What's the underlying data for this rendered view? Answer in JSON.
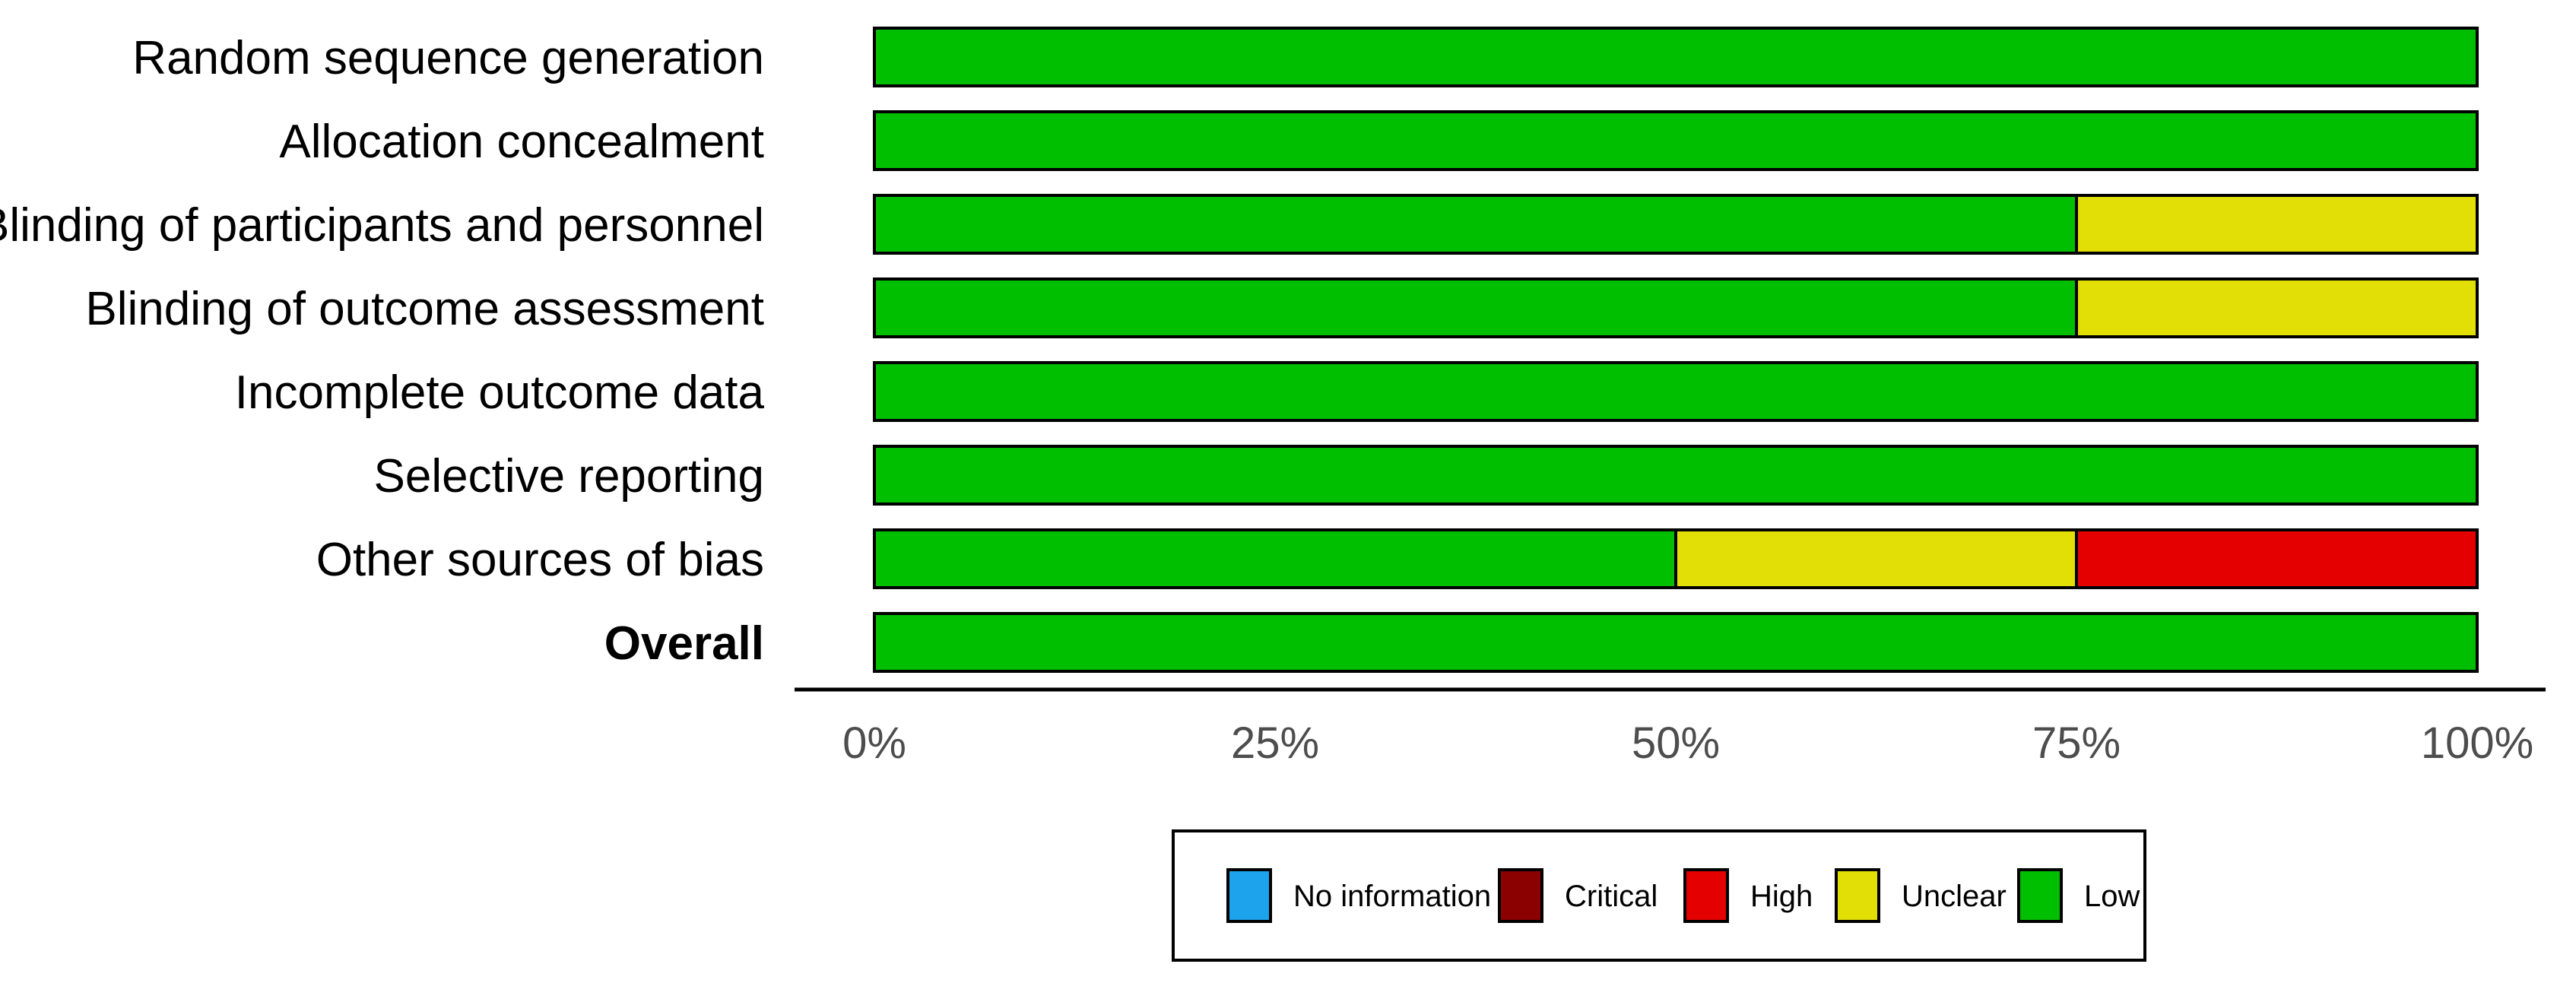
{
  "chart_data": {
    "type": "bar",
    "orientation": "horizontal",
    "stacked": true,
    "title": "",
    "xlabel": "",
    "ylabel": "",
    "xlim": [
      0,
      100
    ],
    "x_ticks": [
      {
        "value": 0,
        "label": "0%"
      },
      {
        "value": 25,
        "label": "25%"
      },
      {
        "value": 50,
        "label": "50%"
      },
      {
        "value": 75,
        "label": "75%"
      },
      {
        "value": 100,
        "label": "100%"
      }
    ],
    "categories": [
      {
        "label": "Random sequence generation",
        "bold": false
      },
      {
        "label": "Allocation concealment",
        "bold": false
      },
      {
        "label": "Blinding of participants and personnel",
        "bold": false
      },
      {
        "label": "Blinding of outcome assessment",
        "bold": false
      },
      {
        "label": "Incomplete outcome data",
        "bold": false
      },
      {
        "label": "Selective reporting",
        "bold": false
      },
      {
        "label": "Other sources of bias",
        "bold": false
      },
      {
        "label": "Overall",
        "bold": true
      }
    ],
    "series": [
      {
        "name": "Low",
        "color": "#00bf00",
        "values": [
          100,
          100,
          75,
          75,
          100,
          100,
          50,
          100
        ]
      },
      {
        "name": "Unclear",
        "color": "#e2df07",
        "values": [
          0,
          0,
          25,
          25,
          0,
          0,
          25,
          0
        ]
      },
      {
        "name": "High",
        "color": "#e50000",
        "values": [
          0,
          0,
          0,
          0,
          0,
          0,
          25,
          0
        ]
      },
      {
        "name": "Critical",
        "color": "#8b0000",
        "values": [
          0,
          0,
          0,
          0,
          0,
          0,
          0,
          0
        ]
      },
      {
        "name": "No information",
        "color": "#1ca3ec",
        "values": [
          0,
          0,
          0,
          0,
          0,
          0,
          0,
          0
        ]
      }
    ],
    "legend": {
      "placement": "bottom",
      "items": [
        {
          "label": "No information",
          "color": "#1ca3ec"
        },
        {
          "label": "Critical",
          "color": "#8b0000"
        },
        {
          "label": "High",
          "color": "#e50000"
        },
        {
          "label": "Unclear",
          "color": "#e2df07"
        },
        {
          "label": "Low",
          "color": "#00bf00"
        }
      ]
    },
    "grid": false
  }
}
